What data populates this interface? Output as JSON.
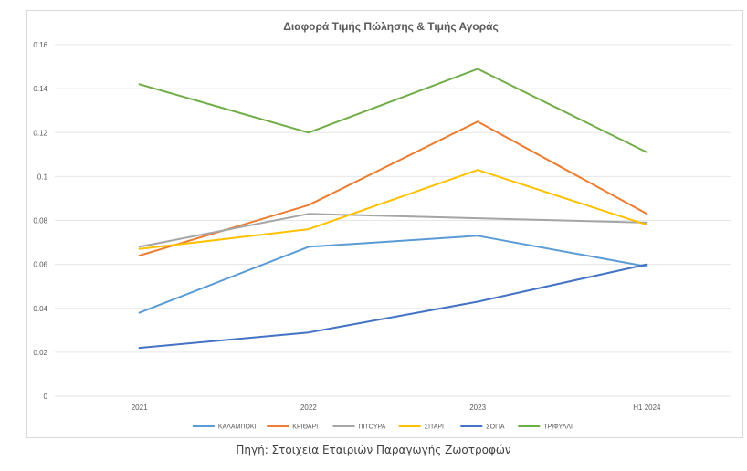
{
  "chart_data": {
    "type": "line",
    "title": "Διαφορά Τιμής Πώλησης & Τιμής Αγοράς",
    "categories": [
      "2021",
      "2022",
      "2023",
      "H1 2024"
    ],
    "ylim": [
      0,
      0.16
    ],
    "yticks": [
      0,
      0.02,
      0.04,
      0.06,
      0.08,
      0.1,
      0.12,
      0.14,
      0.16
    ],
    "ytick_labels": [
      "0",
      "0.02",
      "0.04",
      "0.06",
      "0.08",
      "0.1",
      "0.12",
      "0.14",
      "0.16"
    ],
    "grid": true,
    "legend_position": "bottom",
    "series": [
      {
        "name": "ΚΑΛΑΜΠΟΚΙ",
        "color": "#5b9bd5",
        "values": [
          0.038,
          0.068,
          0.073,
          0.059
        ]
      },
      {
        "name": "ΚΡΙΘΑΡΙ",
        "color": "#ed7d31",
        "values": [
          0.064,
          0.087,
          0.125,
          0.083
        ]
      },
      {
        "name": "ΠΙΤΟΥΡΑ",
        "color": "#a5a5a5",
        "values": [
          0.068,
          0.083,
          0.081,
          0.079
        ]
      },
      {
        "name": "ΣΙΤΑΡΙ",
        "color": "#ffc000",
        "values": [
          0.067,
          0.076,
          0.103,
          0.078
        ]
      },
      {
        "name": "ΣΟΓΙΑ",
        "color": "#4472c4",
        "values": [
          0.022,
          0.029,
          0.043,
          0.06
        ]
      },
      {
        "name": "ΤΡΙΦΥΛΛΙ",
        "color": "#70ad47",
        "values": [
          0.142,
          0.12,
          0.149,
          0.111
        ]
      }
    ]
  },
  "source_note": "Πηγή: Στοιχεία Εταιριών Παραγωγής Ζωοτροφών"
}
